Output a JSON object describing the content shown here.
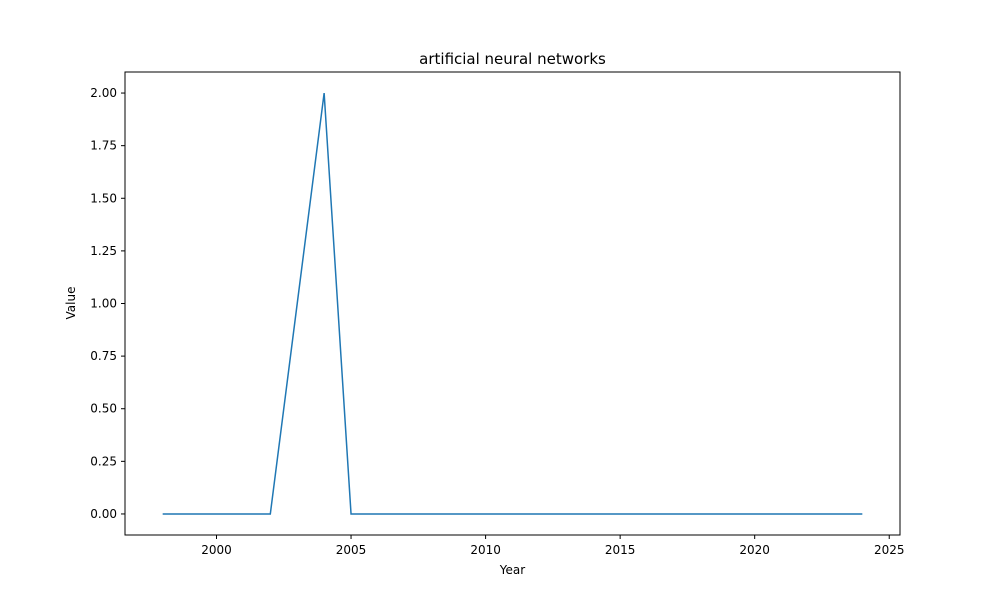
{
  "chart_data": {
    "type": "line",
    "title": "artificial neural networks",
    "xlabel": "Year",
    "ylabel": "Value",
    "xlim": [
      1996.6,
      2025.4
    ],
    "ylim": [
      -0.1,
      2.1
    ],
    "xticks": [
      2000,
      2005,
      2010,
      2015,
      2020,
      2025
    ],
    "yticks": [
      "0.00",
      "0.25",
      "0.50",
      "0.75",
      "1.00",
      "1.25",
      "1.50",
      "1.75",
      "2.00"
    ],
    "grid": false,
    "series": [
      {
        "color": "#1f77b4",
        "x": [
          1998,
          1999,
          2000,
          2001,
          2002,
          2003,
          2004,
          2005,
          2006,
          2007,
          2008,
          2009,
          2010,
          2011,
          2012,
          2013,
          2014,
          2015,
          2016,
          2017,
          2018,
          2019,
          2020,
          2021,
          2022,
          2023,
          2024
        ],
        "y": [
          0,
          0,
          0,
          0,
          0,
          1,
          2,
          0,
          0,
          0,
          0,
          0,
          0,
          0,
          0,
          0,
          0,
          0,
          0,
          0,
          0,
          0,
          0,
          0,
          0,
          0,
          0
        ]
      }
    ]
  }
}
